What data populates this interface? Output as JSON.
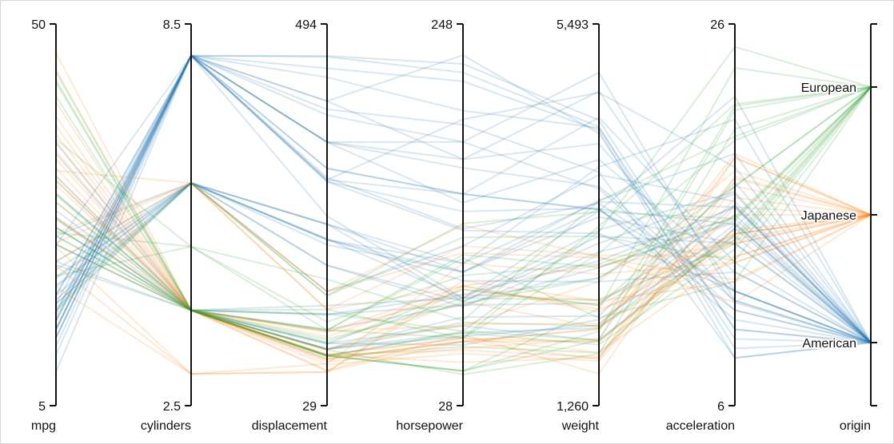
{
  "chart_data": {
    "type": "parallel-coordinates",
    "title": "",
    "axes": [
      {
        "key": "mpg",
        "label": "mpg",
        "min": 5,
        "max": 50,
        "min_label": "5",
        "max_label": "50"
      },
      {
        "key": "cylinders",
        "label": "cylinders",
        "min": 2.5,
        "max": 8.5,
        "min_label": "2.5",
        "max_label": "8.5"
      },
      {
        "key": "displacement",
        "label": "displacement",
        "min": 29,
        "max": 494,
        "min_label": "29",
        "max_label": "494"
      },
      {
        "key": "horsepower",
        "label": "horsepower",
        "min": 28,
        "max": 248,
        "min_label": "28",
        "max_label": "248"
      },
      {
        "key": "weight",
        "label": "weight",
        "min": 1260,
        "max": 5493,
        "min_label": "1,260",
        "max_label": "5,493"
      },
      {
        "key": "acceleration",
        "label": "acceleration",
        "min": 6,
        "max": 26,
        "min_label": "6",
        "max_label": "26"
      },
      {
        "key": "origin",
        "label": "origin",
        "categorical": true,
        "categories": [
          "European",
          "Japanese",
          "American"
        ]
      }
    ],
    "colors": {
      "American": "#1f77b4",
      "Japanese": "#ff7f0e",
      "European": "#2ca02c"
    },
    "grid": false,
    "series": [
      {
        "origin": "American",
        "values": [
          [
            18,
            8,
            307,
            130,
            3504,
            12
          ],
          [
            15,
            8,
            350,
            165,
            3693,
            11.5
          ],
          [
            18,
            8,
            318,
            150,
            3436,
            11
          ],
          [
            16,
            8,
            304,
            150,
            3433,
            12
          ],
          [
            17,
            8,
            302,
            140,
            3449,
            10.5
          ],
          [
            15,
            8,
            429,
            198,
            4341,
            10
          ],
          [
            14,
            8,
            454,
            220,
            4354,
            9
          ],
          [
            14,
            8,
            440,
            215,
            4312,
            8.5
          ],
          [
            14,
            8,
            455,
            225,
            4425,
            10
          ],
          [
            15,
            8,
            390,
            190,
            3850,
            8.5
          ],
          [
            13,
            8,
            400,
            170,
            4746,
            12
          ],
          [
            12,
            8,
            383,
            180,
            4955,
            11.5
          ],
          [
            11,
            8,
            350,
            180,
            3664,
            11
          ],
          [
            13,
            8,
            350,
            145,
            3988,
            13
          ],
          [
            16,
            8,
            400,
            230,
            4278,
            9.5
          ],
          [
            14,
            8,
            318,
            150,
            4457,
            13.5
          ],
          [
            18,
            6,
            250,
            88,
            3139,
            14.5
          ],
          [
            21,
            6,
            225,
            105,
            3439,
            15.5
          ],
          [
            19,
            6,
            232,
            100,
            2634,
            13
          ],
          [
            22,
            6,
            250,
            105,
            3353,
            14.5
          ],
          [
            20,
            6,
            200,
            85,
            2965,
            15.8
          ],
          [
            17,
            6,
            231,
            110,
            3907,
            21
          ],
          [
            25,
            6,
            232,
            90,
            3210,
            17.2
          ],
          [
            28,
            4,
            151,
            90,
            2678,
            16.5
          ],
          [
            27,
            4,
            140,
            86,
            2790,
            15.6
          ],
          [
            24,
            4,
            140,
            92,
            2865,
            16.4
          ],
          [
            22,
            4,
            122,
            86,
            2395,
            16
          ],
          [
            26,
            4,
            98,
            79,
            2255,
            17.7
          ],
          [
            30,
            4,
            98,
            68,
            2155,
            16.5
          ],
          [
            23.9,
            8,
            260,
            90,
            3420,
            22.2
          ],
          [
            20.2,
            6,
            200,
            88,
            3060,
            17.1
          ],
          [
            34.7,
            4,
            105,
            63,
            2215,
            14.9
          ],
          [
            15.5,
            8,
            350,
            170,
            4165,
            11.4
          ],
          [
            19.2,
            6,
            231,
            105,
            3535,
            19.2
          ],
          [
            32.1,
            4,
            98,
            70,
            2120,
            15.5
          ],
          [
            36,
            4,
            105,
            74,
            1980,
            15.3
          ],
          [
            17.5,
            6,
            250,
            110,
            3520,
            16.4
          ],
          [
            13,
            8,
            302,
            129,
            3169,
            12
          ],
          [
            16.5,
            6,
            168,
            120,
            3820,
            16.7
          ],
          [
            9,
            8,
            304,
            193,
            4732,
            18.5
          ]
        ]
      },
      {
        "origin": "Japanese",
        "values": [
          [
            24,
            4,
            113,
            95,
            2372,
            15
          ],
          [
            27,
            4,
            97,
            88,
            2130,
            14.5
          ],
          [
            31,
            4,
            71,
            65,
            1773,
            19
          ],
          [
            35,
            4,
            72,
            69,
            1613,
            18
          ],
          [
            32,
            4,
            83,
            61,
            2003,
            19
          ],
          [
            29,
            4,
            97,
            75,
            2171,
            16
          ],
          [
            33,
            4,
            91,
            53,
            1795,
            17.5
          ],
          [
            19,
            3,
            70,
            97,
            2330,
            13.5
          ],
          [
            40.8,
            4,
            85,
            65,
            2110,
            19.2
          ],
          [
            44.6,
            4,
            91,
            67,
            1850,
            13.8
          ],
          [
            37,
            4,
            119,
            92,
            2434,
            15
          ],
          [
            32.7,
            6,
            168,
            132,
            2910,
            11.4
          ],
          [
            46.6,
            4,
            86,
            65,
            2110,
            17.9
          ],
          [
            38,
            4,
            91,
            67,
            1965,
            15
          ],
          [
            31.6,
            4,
            120,
            74,
            2635,
            18.3
          ],
          [
            25.4,
            6,
            168,
            116,
            2900,
            12.6
          ],
          [
            22,
            6,
            146,
            97,
            2815,
            14.5
          ],
          [
            36.1,
            4,
            91,
            60,
            1800,
            16.4
          ],
          [
            39.1,
            4,
            79,
            58,
            1755,
            16.9
          ],
          [
            23.7,
            3,
            70,
            100,
            2420,
            12.5
          ],
          [
            24.2,
            6,
            146,
            120,
            2930,
            13.8
          ],
          [
            27.2,
            4,
            119,
            97,
            2300,
            14.7
          ],
          [
            21.5,
            3,
            80,
            110,
            2720,
            13.5
          ],
          [
            34.1,
            4,
            86,
            65,
            1975,
            15.2
          ]
        ]
      },
      {
        "origin": "European",
        "values": [
          [
            26,
            4,
            97,
            46,
            1835,
            20.5
          ],
          [
            25,
            4,
            110,
            87,
            2672,
            17.5
          ],
          [
            24,
            4,
            107,
            90,
            2430,
            14.5
          ],
          [
            25,
            4,
            104,
            95,
            2375,
            17.5
          ],
          [
            26,
            4,
            121,
            113,
            2234,
            12.5
          ],
          [
            43.1,
            4,
            90,
            48,
            1985,
            21.5
          ],
          [
            20.3,
            5,
            131,
            103,
            2830,
            15.9
          ],
          [
            44.3,
            4,
            90,
            48,
            2085,
            21.7
          ],
          [
            43.4,
            4,
            90,
            48,
            2335,
            23.7
          ],
          [
            36.4,
            5,
            121,
            67,
            2950,
            19.9
          ],
          [
            30,
            4,
            146,
            67,
            3250,
            21.8
          ],
          [
            16.2,
            6,
            163,
            133,
            3410,
            15.8
          ],
          [
            17,
            6,
            163,
            125,
            3140,
            13.6
          ],
          [
            29.8,
            4,
            89,
            62,
            1845,
            15.3
          ],
          [
            31.5,
            4,
            89,
            71,
            1990,
            14.9
          ],
          [
            21.6,
            4,
            121,
            115,
            2795,
            15.7
          ],
          [
            25.4,
            5,
            183,
            77,
            3530,
            20.1
          ],
          [
            27.2,
            4,
            141,
            71,
            3190,
            24.8
          ],
          [
            41.5,
            4,
            98,
            76,
            2144,
            14.7
          ],
          [
            29,
            4,
            90,
            70,
            1937,
            14.2
          ]
        ]
      }
    ]
  }
}
